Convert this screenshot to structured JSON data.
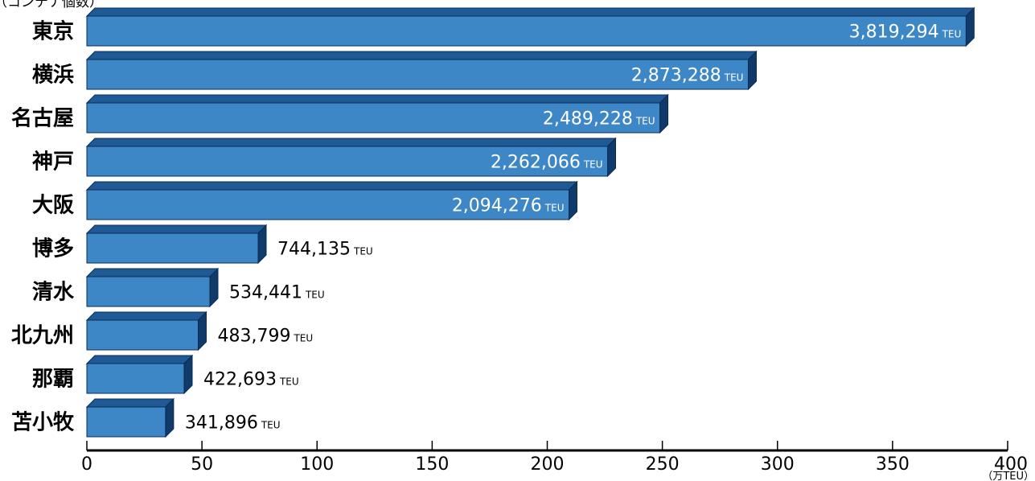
{
  "chart_data": {
    "type": "bar",
    "orientation": "horizontal",
    "style": "3d",
    "top_label": "（コンテナ個数）",
    "categories": [
      "東京",
      "横浜",
      "名古屋",
      "神戸",
      "大阪",
      "博多",
      "清水",
      "北九州",
      "那覇",
      "苫小牧"
    ],
    "values": [
      3819294,
      2873288,
      2489228,
      2262066,
      2094276,
      744135,
      534441,
      483799,
      422693,
      341896
    ],
    "value_labels": [
      "3,819,294",
      "2,873,288",
      "2,489,228",
      "2,262,066",
      "2,094,276",
      "744,135",
      "534,441",
      "483,799",
      "422,693",
      "341,896"
    ],
    "value_unit": "TEU",
    "x_axis": {
      "ticks": [
        0,
        50,
        100,
        150,
        200,
        250,
        300,
        350,
        400
      ],
      "unit_label": "（万TEU）",
      "range": [
        0,
        400
      ],
      "scale_divisor": 10000
    },
    "colors": {
      "bar_front": "#3d87c7",
      "bar_top": "#1f5a97",
      "bar_side": "#0f3a6a",
      "bar_stroke": "#0b2c52",
      "inside_label": "#ffffff",
      "outside_label": "#000000"
    }
  }
}
